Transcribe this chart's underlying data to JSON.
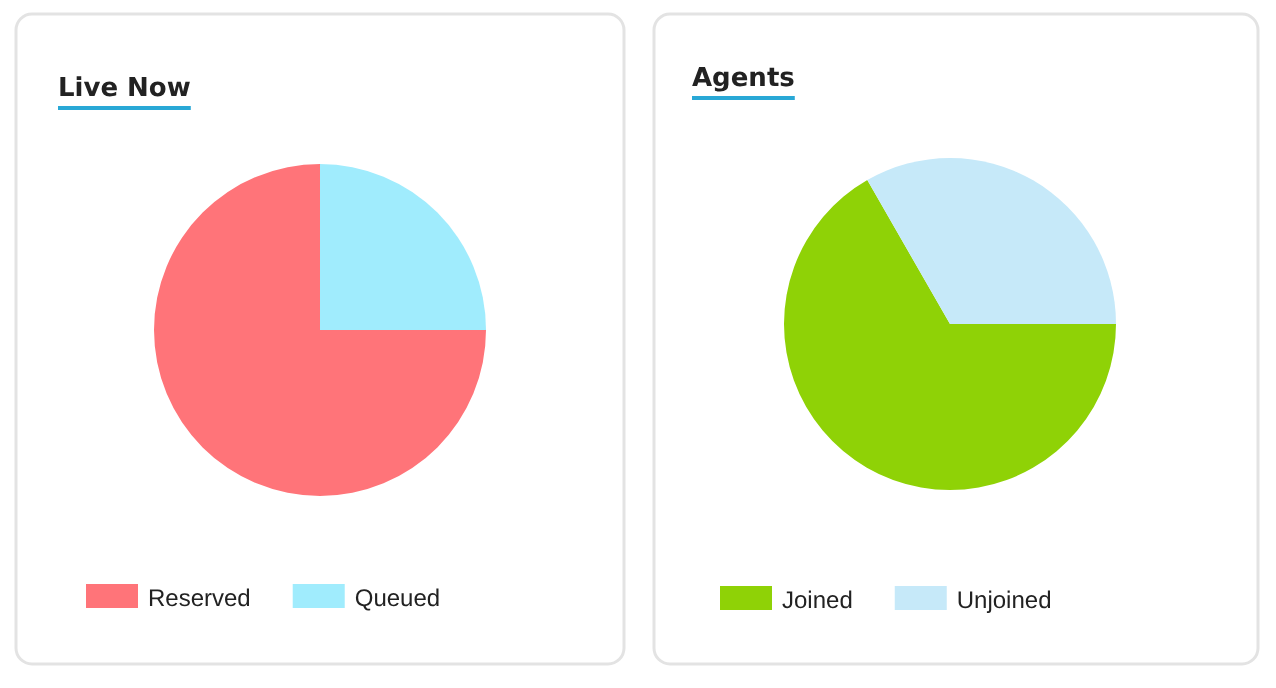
{
  "chart_data": [
    {
      "type": "pie",
      "title": "Live Now",
      "categories": [
        "Reserved",
        "Queued"
      ],
      "values": [
        75,
        25
      ],
      "colors": [
        "#ff7479",
        "#a0ecfd"
      ],
      "legend": "bottom"
    },
    {
      "type": "pie",
      "title": "Agents",
      "categories": [
        "Joined",
        "Unjoined"
      ],
      "values": [
        66.7,
        33.3
      ],
      "colors": [
        "#8fd206",
        "#c6e9f9"
      ],
      "legend": "bottom"
    }
  ]
}
